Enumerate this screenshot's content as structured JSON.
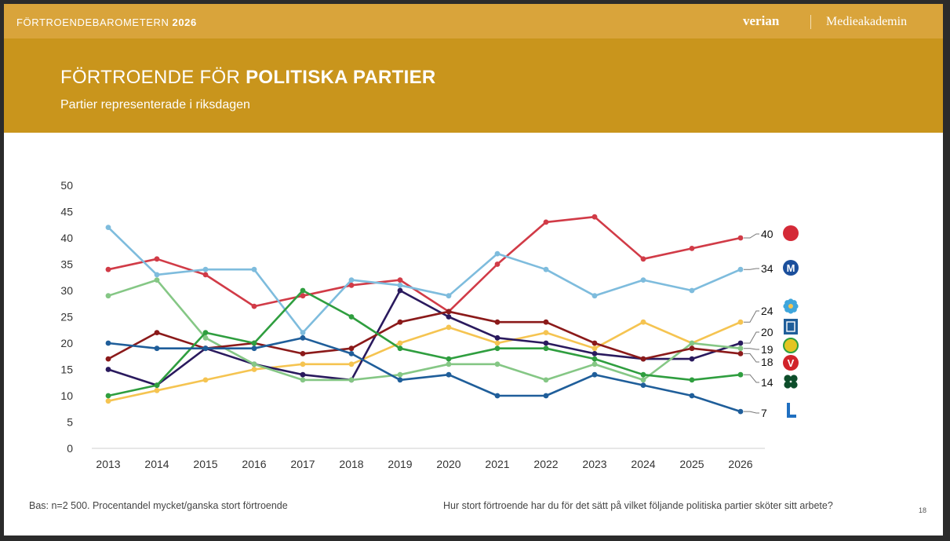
{
  "topbar": {
    "brand": "FÖRTROENDEBAROMETERN",
    "year": "2026",
    "logo_left": "verian",
    "logo_right": "Medieakademin"
  },
  "header": {
    "title_light": "FÖRTROENDE FÖR",
    "title_bold": "POLITISKA PARTIER",
    "subtitle": "Partier representerade i riksdagen"
  },
  "footer": {
    "base_note": "Bas: n=2 500. Procentandel mycket/ganska stort förtroende",
    "question": "Hur stort förtroende har du för det sätt på vilket följande politiska partier sköter sitt arbete?",
    "page_number": "18"
  },
  "chart_data": {
    "type": "line",
    "x": [
      "2013",
      "2014",
      "2015",
      "2016",
      "2017",
      "2018",
      "2019",
      "2020",
      "2021",
      "2022",
      "2023",
      "2024",
      "2025",
      "2026"
    ],
    "ylim": [
      0,
      50
    ],
    "yticks": [
      0,
      5,
      10,
      15,
      20,
      25,
      30,
      35,
      40,
      45,
      50
    ],
    "grid": false,
    "series": [
      {
        "color": "#d13b47",
        "values": [
          34,
          36,
          33,
          27,
          29,
          31,
          32,
          26,
          35,
          43,
          44,
          36,
          38,
          40
        ],
        "end_label": "40",
        "icon": "rose-icon"
      },
      {
        "color": "#7ebcdd",
        "values": [
          42,
          33,
          34,
          34,
          22,
          32,
          31,
          29,
          37,
          34,
          29,
          32,
          30,
          34
        ],
        "end_label": "34",
        "icon": "m-logo-icon"
      },
      {
        "color": "#f5c451",
        "values": [
          9,
          11,
          13,
          15,
          16,
          16,
          20,
          23,
          20,
          22,
          19,
          24,
          20,
          24
        ],
        "end_label": "24",
        "icon": "flower-icon"
      },
      {
        "color": "#2a1a5e",
        "values": [
          15,
          12,
          19,
          16,
          14,
          13,
          30,
          25,
          21,
          20,
          18,
          17,
          17,
          20
        ],
        "end_label": "20",
        "icon": "kd-logo-icon"
      },
      {
        "color": "#85c785",
        "values": [
          29,
          32,
          21,
          16,
          13,
          13,
          14,
          16,
          16,
          13,
          16,
          13,
          20,
          19
        ],
        "end_label": "19",
        "icon": "sun-icon"
      },
      {
        "color": "#8b1a1a",
        "values": [
          17,
          22,
          19,
          20,
          18,
          19,
          24,
          26,
          24,
          24,
          20,
          17,
          19,
          18
        ],
        "end_label": "18",
        "icon": "v-logo-icon"
      },
      {
        "color": "#2f9e3f",
        "values": [
          10,
          12,
          22,
          20,
          30,
          25,
          19,
          17,
          19,
          19,
          17,
          14,
          13,
          14
        ],
        "end_label": "14",
        "icon": "clover-icon"
      },
      {
        "color": "#1f5e9a",
        "values": [
          20,
          19,
          19,
          19,
          21,
          18,
          13,
          14,
          10,
          10,
          14,
          12,
          10,
          7
        ],
        "end_label": "7",
        "icon": "l-logo-icon"
      }
    ]
  }
}
